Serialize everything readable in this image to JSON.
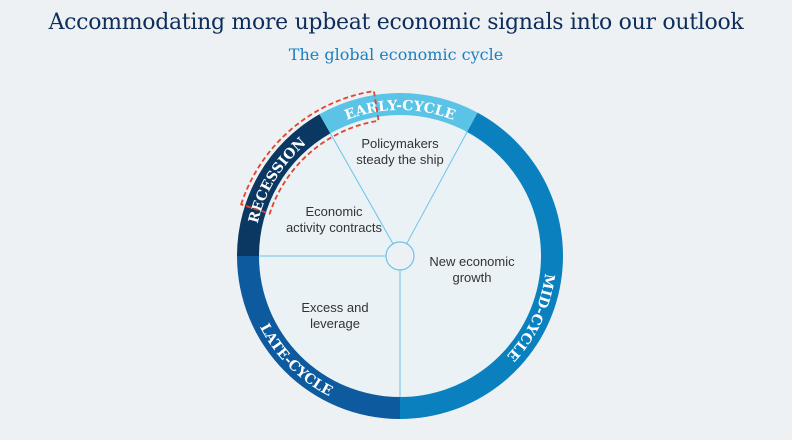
{
  "title": "Accommodating more upbeat economic signals into our outlook",
  "subtitle": "The global economic cycle",
  "phases": [
    {
      "label": "RECESSION",
      "color": "#0b3862",
      "description": [
        "Economic",
        "activity contracts"
      ]
    },
    {
      "label": "EARLY-CYCLE",
      "color": "#5ac3e6",
      "description": [
        "Policymakers",
        "steady the ship"
      ]
    },
    {
      "label": "MID-CYCLE",
      "color": "#0b80be",
      "description": [
        "New economic",
        "growth"
      ]
    },
    {
      "label": "LATE-CYCLE",
      "color": "#0d5a9f",
      "description": [
        "Excess and",
        "leverage"
      ]
    }
  ],
  "highlight_color": "#e0452e",
  "inner_fill": "#eaf2f6",
  "divider_color": "#6cc4e8"
}
